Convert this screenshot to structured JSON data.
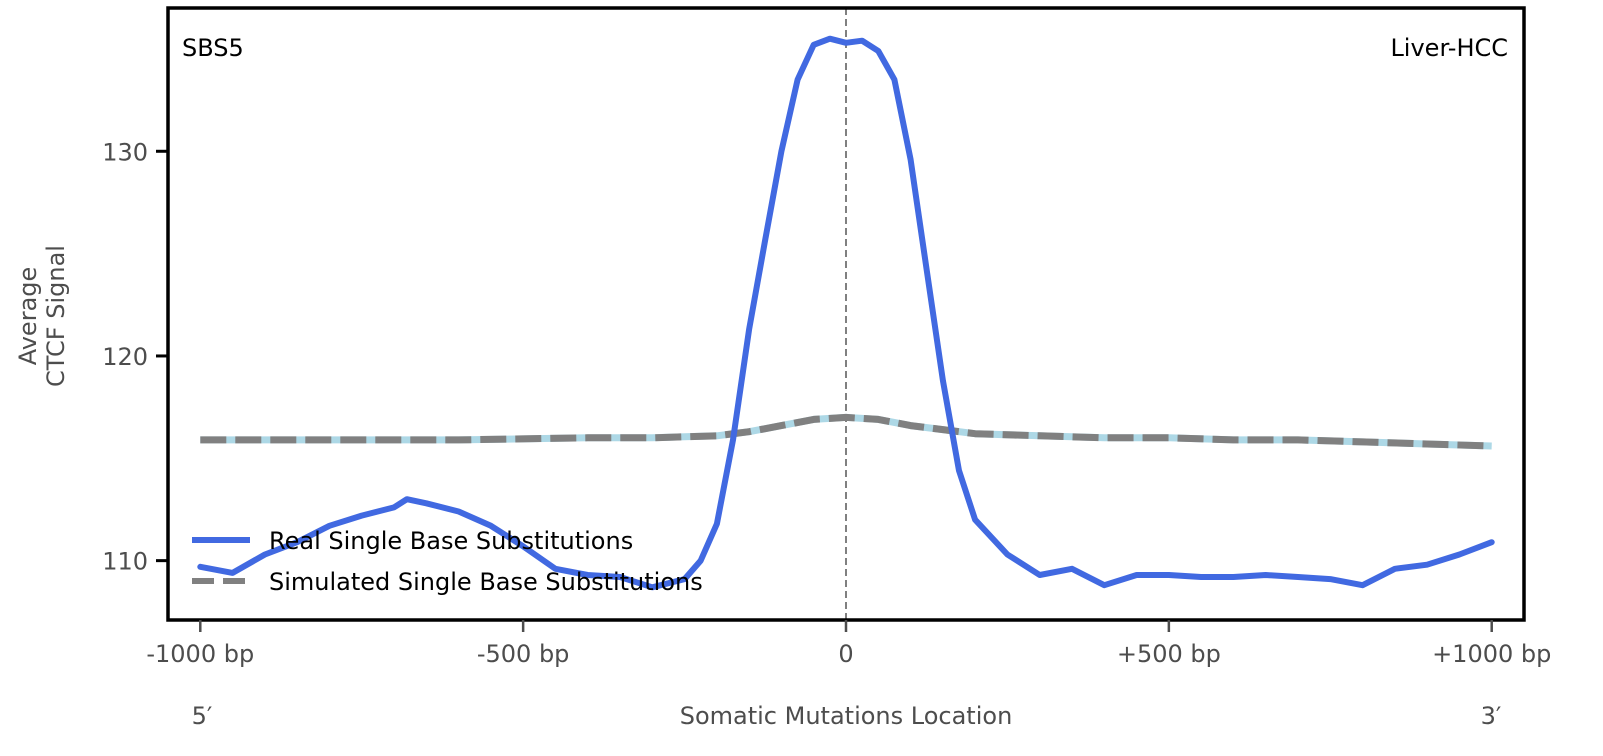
{
  "chart_data": {
    "type": "line",
    "title": "",
    "corner_labels": {
      "left": "SBS5",
      "right": "Liver-HCC"
    },
    "xlabel": "Somatic Mutations Location",
    "xlabel_ends": {
      "left": "5′",
      "right": "3′"
    },
    "ylabel": [
      "Average",
      "CTCF Signal"
    ],
    "xlim": [
      -1050,
      1050
    ],
    "ylim": [
      107.1,
      137.0
    ],
    "x_ticks": [
      {
        "value": -1000,
        "label": "-1000 bp"
      },
      {
        "value": -500,
        "label": "-500 bp"
      },
      {
        "value": 0,
        "label": "0"
      },
      {
        "value": 500,
        "label": "+500 bp"
      },
      {
        "value": 1000,
        "label": "+1000 bp"
      }
    ],
    "y_ticks": [
      {
        "value": 110,
        "label": "110"
      },
      {
        "value": 120,
        "label": "120"
      },
      {
        "value": 130,
        "label": "130"
      }
    ],
    "grid": false,
    "reference_line": {
      "x": 0,
      "style": "dashed",
      "color": "#808080"
    },
    "legend": {
      "placement": "lower-left",
      "entries": [
        {
          "label": "Real Single Base Substitutions",
          "series": "real"
        },
        {
          "label": "Simulated Single Base Substitutions",
          "series": "simulated"
        }
      ]
    },
    "series": [
      {
        "name": "Real Single Base Substitutions",
        "id": "real",
        "color": "#4169e1",
        "style": "solid",
        "x": [
          -1000,
          -950,
          -900,
          -850,
          -800,
          -750,
          -700,
          -680,
          -650,
          -600,
          -550,
          -500,
          -450,
          -400,
          -350,
          -300,
          -250,
          -225,
          -200,
          -175,
          -150,
          -125,
          -100,
          -75,
          -50,
          -25,
          0,
          25,
          50,
          75,
          100,
          125,
          150,
          175,
          200,
          250,
          300,
          350,
          400,
          450,
          500,
          550,
          600,
          650,
          700,
          750,
          800,
          850,
          900,
          950,
          1000
        ],
        "y": [
          109.7,
          109.4,
          110.3,
          110.9,
          111.7,
          112.2,
          112.6,
          113.0,
          112.8,
          112.4,
          111.7,
          110.7,
          109.6,
          109.3,
          109.2,
          108.7,
          109.1,
          110.0,
          111.8,
          115.9,
          121.3,
          125.7,
          130.0,
          133.5,
          135.2,
          135.5,
          135.3,
          135.4,
          134.9,
          133.5,
          129.6,
          124.2,
          118.8,
          114.4,
          112.0,
          110.3,
          109.3,
          109.6,
          108.8,
          109.3,
          109.3,
          109.2,
          109.2,
          109.3,
          109.2,
          109.1,
          108.8,
          109.6,
          109.8,
          110.3,
          110.9
        ]
      },
      {
        "name": "Simulated Single Base Substitutions",
        "id": "simulated",
        "color": "#808080",
        "secondary_color": "#add8e6",
        "style": "dashed",
        "x": [
          -1000,
          -800,
          -600,
          -400,
          -300,
          -200,
          -150,
          -100,
          -50,
          0,
          50,
          100,
          150,
          200,
          300,
          400,
          500,
          600,
          700,
          800,
          900,
          1000
        ],
        "y": [
          115.9,
          115.9,
          115.9,
          116.0,
          116.0,
          116.1,
          116.3,
          116.6,
          116.9,
          117.0,
          116.9,
          116.6,
          116.4,
          116.2,
          116.1,
          116.0,
          116.0,
          115.9,
          115.9,
          115.8,
          115.7,
          115.6
        ]
      }
    ]
  }
}
